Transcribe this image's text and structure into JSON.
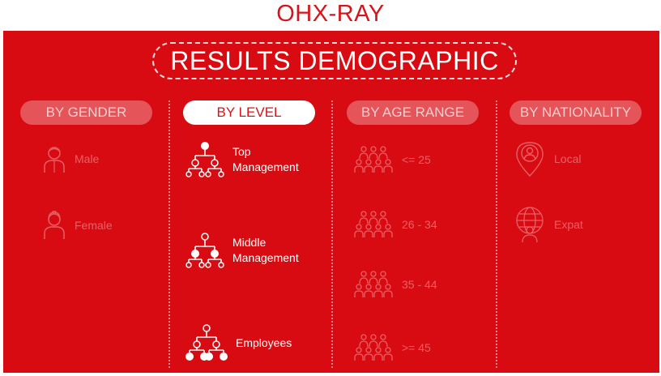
{
  "brand": "OHX-RAY",
  "title": "RESULTS DEMOGRAPHIC",
  "tabs": [
    {
      "label": "BY GENDER",
      "active": false
    },
    {
      "label": "BY LEVEL",
      "active": true
    },
    {
      "label": "BY AGE RANGE",
      "active": false
    },
    {
      "label": "BY NATIONALITY",
      "active": false
    }
  ],
  "gender": [
    {
      "label": "Male",
      "icon": "male-person-icon"
    },
    {
      "label": "Female",
      "icon": "female-person-icon"
    }
  ],
  "level": [
    {
      "label": "Top\nManagement",
      "icon": "org-chart-top-icon"
    },
    {
      "label": "Middle\nManagement",
      "icon": "org-chart-middle-icon"
    },
    {
      "label": "Employees",
      "icon": "org-chart-employees-icon"
    }
  ],
  "age": [
    {
      "label": "<= 25",
      "icon": "people-group-icon"
    },
    {
      "label": "26 - 34",
      "icon": "people-group-icon"
    },
    {
      "label": "35 - 44",
      "icon": "people-group-icon"
    },
    {
      "label": ">= 45",
      "icon": "people-group-icon"
    }
  ],
  "nationality": [
    {
      "label": "Local",
      "icon": "location-person-icon"
    },
    {
      "label": "Expat",
      "icon": "globe-person-icon"
    }
  ],
  "colors": {
    "panel": "#d90b12",
    "brand": "#d7141a",
    "white": "#ffffff"
  }
}
